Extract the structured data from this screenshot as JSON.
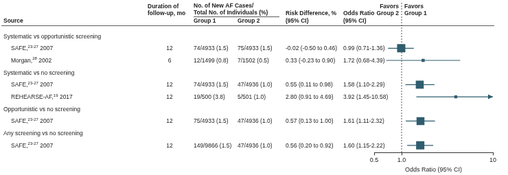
{
  "chart_data": {
    "type": "forest",
    "headers": {
      "source": "Source",
      "duration": [
        "Duration of",
        "follow-up, mo"
      ],
      "cases": [
        "No. of New AF Cases/",
        "Total No. of Individuals (%)"
      ],
      "group1": "Group 1",
      "group2": "Group 2",
      "risk_difference": [
        "Risk Difference, %",
        "(95% CI)"
      ],
      "odds_ratio": [
        "Odds Ratio",
        "(95% CI)"
      ],
      "favors_left": [
        "Favors",
        "Group 2"
      ],
      "favors_right": [
        "Favors",
        "Group 1"
      ]
    },
    "sections": [
      {
        "title": "Systematic vs opportunistic screening",
        "studies": [
          {
            "source": "SAFE,",
            "refs": "23-27",
            "year": "2007",
            "duration": 12,
            "group1": "74/4933 (1.5)",
            "group2": "75/4933 (1.5)",
            "risk_difference": "-0.02 (-0.50 to 0.46)",
            "odds_ratio": "0.99 (0.71-1.36)",
            "or": 0.99,
            "ci": [
              0.71,
              1.36
            ]
          },
          {
            "source": "Morgan,",
            "refs": "28",
            "year": "2002",
            "duration": 6,
            "group1": "12/1499 (0.8)",
            "group2": "7/1502 (0.5)",
            "risk_difference": "0.33 (-0.23 to 0.90)",
            "odds_ratio": "1.72 (0.68-4.39)",
            "or": 1.72,
            "ci": [
              0.68,
              4.39
            ]
          }
        ]
      },
      {
        "title": "Systematic vs no screening",
        "studies": [
          {
            "source": "SAFE,",
            "refs": "23-27",
            "year": "2007",
            "duration": 12,
            "group1": "74/4933 (1.5)",
            "group2": "47/4936 (1.0)",
            "risk_difference": "0.55 (0.11 to 0.98)",
            "odds_ratio": "1.58 (1.10-2.29)",
            "or": 1.58,
            "ci": [
              1.1,
              2.29
            ]
          },
          {
            "source": "REHEARSE-AF,",
            "refs": "19",
            "year": "2017",
            "duration": 12,
            "group1": "19/500 (3.8)",
            "group2": "5/501 (1.0)",
            "risk_difference": "2.80 (0.91 to 4.69)",
            "odds_ratio": "3.92 (1.45-10.58)",
            "or": 3.92,
            "ci": [
              1.45,
              10.58
            ]
          }
        ]
      },
      {
        "title": "Opportunistic vs no screening",
        "studies": [
          {
            "source": "SAFE,",
            "refs": "23-27",
            "year": "2007",
            "duration": 12,
            "group1": "75/4933 (1.5)",
            "group2": "47/4936 (1.0)",
            "risk_difference": "0.57 (0.13 to 1.00)",
            "odds_ratio": "1.61 (1.11-2.32)",
            "or": 1.61,
            "ci": [
              1.11,
              2.32
            ]
          }
        ]
      },
      {
        "title": "Any screening vs no screening",
        "studies": [
          {
            "source": "SAFE,",
            "refs": "23-27",
            "year": "2007",
            "duration": 12,
            "group1": "149/9866 (1.5)",
            "group2": "47/4936 (1.0)",
            "risk_difference": "0.56 (0.20 to 0.92)",
            "odds_ratio": "1.60 (1.15-2.22)",
            "or": 1.6,
            "ci": [
              1.15,
              2.22
            ]
          }
        ]
      }
    ],
    "xlabel": "Odds Ratio (95% CI)",
    "xlim": [
      0.5,
      10
    ],
    "xticks": [
      0.5,
      {
        "value": 1,
        "label": "1.0"
      },
      10
    ],
    "log": "x",
    "reference_line": 1,
    "grid": false,
    "color": "#2f5d6e",
    "marker": "square"
  }
}
